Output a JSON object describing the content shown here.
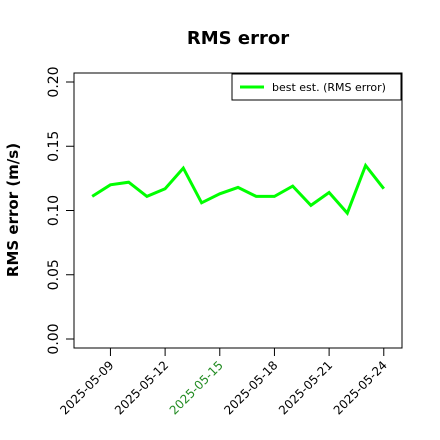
{
  "chart_data": {
    "type": "line",
    "title": "RMS error",
    "ylabel": "RMS error (m/s)",
    "xlabel": "",
    "ylim": [
      0,
      0.2
    ],
    "yticks": [
      "0.00",
      "0.05",
      "0.10",
      "0.15",
      "0.20"
    ],
    "ytick_values": [
      0,
      0.05,
      0.1,
      0.15,
      0.2
    ],
    "x_range": [
      "2025-05-07",
      "2025-05-25"
    ],
    "xticks": [
      {
        "label": "2025-05-09",
        "color": "#000000"
      },
      {
        "label": "2025-05-12",
        "color": "#000000"
      },
      {
        "label": "2025-05-15",
        "color": "#228B22"
      },
      {
        "label": "2025-05-18",
        "color": "#000000"
      },
      {
        "label": "2025-05-21",
        "color": "#000000"
      },
      {
        "label": "2025-05-24",
        "color": "#000000"
      }
    ],
    "grid": false,
    "legend_position": "top-right",
    "series": [
      {
        "name": "best est. (RMS error)",
        "color": "#00ff00",
        "x": [
          "2025-05-08",
          "2025-05-09",
          "2025-05-10",
          "2025-05-11",
          "2025-05-12",
          "2025-05-13",
          "2025-05-14",
          "2025-05-15",
          "2025-05-16",
          "2025-05-17",
          "2025-05-18",
          "2025-05-19",
          "2025-05-20",
          "2025-05-21",
          "2025-05-22",
          "2025-05-23",
          "2025-05-24"
        ],
        "values": [
          0.111,
          0.12,
          0.122,
          0.111,
          0.117,
          0.133,
          0.106,
          0.113,
          0.118,
          0.111,
          0.111,
          0.119,
          0.104,
          0.114,
          0.098,
          0.135,
          0.117
        ]
      }
    ]
  }
}
